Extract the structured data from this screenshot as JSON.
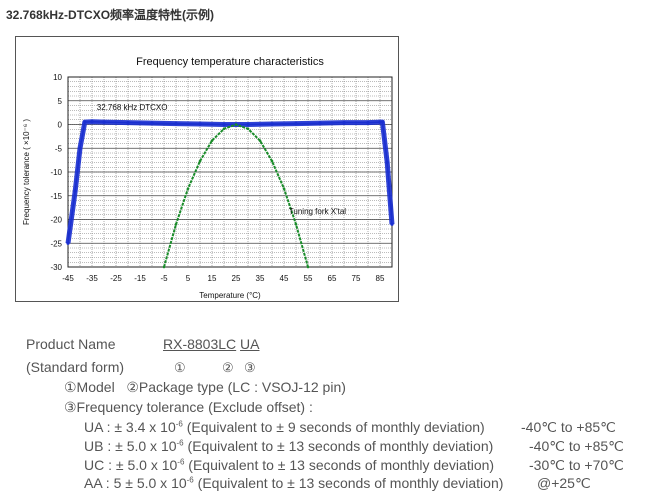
{
  "page": {
    "heading": "32.768kHz-DTCXO频率温度特性(示例)"
  },
  "chart_data": {
    "type": "line",
    "title": "Frequency temperature characteristics",
    "xlabel": "Temperature (°C)",
    "ylabel": "Frequency tolerance ( ×10⁻⁶ )",
    "xlim": [
      -45,
      90
    ],
    "ylim": [
      -30,
      10
    ],
    "x_ticks": [
      -45,
      -35,
      -25,
      -15,
      -5,
      5,
      15,
      25,
      35,
      45,
      55,
      65,
      75,
      85
    ],
    "y_ticks": [
      10,
      5,
      0,
      -5,
      -10,
      -15,
      -20,
      -25,
      -30
    ],
    "grid": true,
    "annotations": [
      {
        "text": "32.768 kHz DTCXO",
        "x": -33,
        "y": 3.1
      },
      {
        "text": "Tuning fork X'tal",
        "x": 47,
        "y": -18.8
      }
    ],
    "series": [
      {
        "name": "32.768 kHz DTCXO",
        "color": "#1a2fd0",
        "x": [
          -45,
          -42,
          -40,
          -38,
          -35,
          -30,
          -20,
          -10,
          0,
          10,
          20,
          25,
          30,
          40,
          50,
          60,
          70,
          80,
          85,
          86,
          88,
          90
        ],
        "y": [
          -25,
          -14,
          -5,
          0.5,
          0.6,
          0.5,
          0.4,
          0.3,
          0.2,
          0.1,
          0.0,
          0.0,
          0.0,
          0.1,
          0.2,
          0.3,
          0.4,
          0.4,
          0.5,
          0.5,
          -8,
          -21
        ]
      },
      {
        "name": "Tuning fork X'tal",
        "color": "#1a8c2a",
        "x": [
          -5,
          0,
          5,
          10,
          15,
          20,
          25,
          30,
          35,
          40,
          45,
          50,
          55
        ],
        "y": [
          -30,
          -21,
          -13.5,
          -7.7,
          -3.4,
          -0.9,
          0,
          -0.9,
          -3.4,
          -7.7,
          -13.5,
          -21,
          -30
        ]
      }
    ]
  },
  "product": {
    "label_name": "Product Name",
    "label_form": "(Standard form)",
    "model_code": "RX-8803LC",
    "package_code": "UA",
    "mark1": "①",
    "mark2": "②",
    "mark3": "③",
    "legend_model": "①Model",
    "legend_package": "②Package type (LC : VSOJ-12 pin)",
    "legend_tolerance": "③Frequency tolerance (Exclude offset) :",
    "grades": [
      {
        "code": "UA",
        "spec_pre": "± 3.4 x 10",
        "spec_sup": "-6",
        "spec_post": " (Equivalent to ± 9 seconds of monthly deviation)",
        "range": "-40℃ to +85℃"
      },
      {
        "code": "UB",
        "spec_pre": "± 5.0 x 10",
        "spec_sup": "-6",
        "spec_post": " (Equivalent to ± 13 seconds of monthly deviation)",
        "range": "-40℃ to +85℃"
      },
      {
        "code": "UC",
        "spec_pre": "± 5.0 x 10",
        "spec_sup": "-6",
        "spec_post": " (Equivalent to ± 13 seconds of monthly deviation)",
        "range": "-30℃ to +70℃"
      },
      {
        "code": "AA",
        "spec_pre": "5 ± 5.0 x 10",
        "spec_sup": "-6",
        "spec_post": " (Equivalent to ± 13 seconds of monthly deviation)",
        "range": "@+25℃"
      }
    ]
  }
}
